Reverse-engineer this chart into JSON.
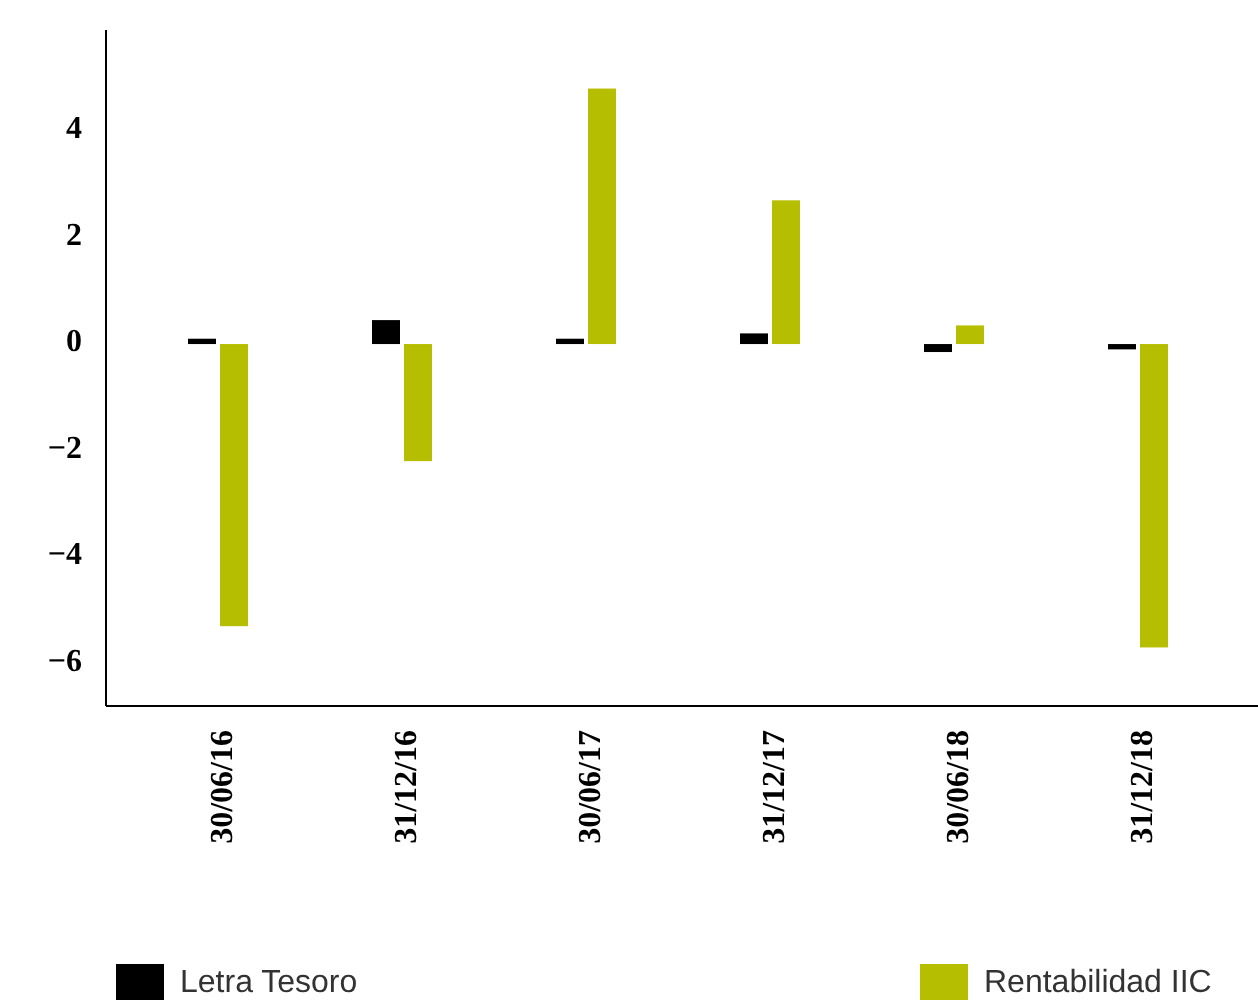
{
  "chart_data": {
    "type": "bar",
    "categories": [
      "30/06/16",
      "31/12/16",
      "30/06/17",
      "31/12/17",
      "30/06/18",
      "31/12/18"
    ],
    "series": [
      {
        "name": "Letra Tesoro",
        "color": "#000000",
        "values": [
          0.1,
          0.45,
          0.1,
          0.2,
          -0.15,
          -0.1
        ]
      },
      {
        "name": "Rentabilidad IIC",
        "color": "#b5be00",
        "values": [
          -5.3,
          -2.2,
          4.8,
          2.7,
          0.35,
          -5.7
        ]
      }
    ],
    "ylim": [
      -6.8,
      5.9
    ],
    "yticks": [
      {
        "value": -6,
        "label": "−6"
      },
      {
        "value": -4,
        "label": "−4"
      },
      {
        "value": -2,
        "label": "−2"
      },
      0,
      2,
      4
    ],
    "grid": false,
    "legend": "bottom"
  }
}
